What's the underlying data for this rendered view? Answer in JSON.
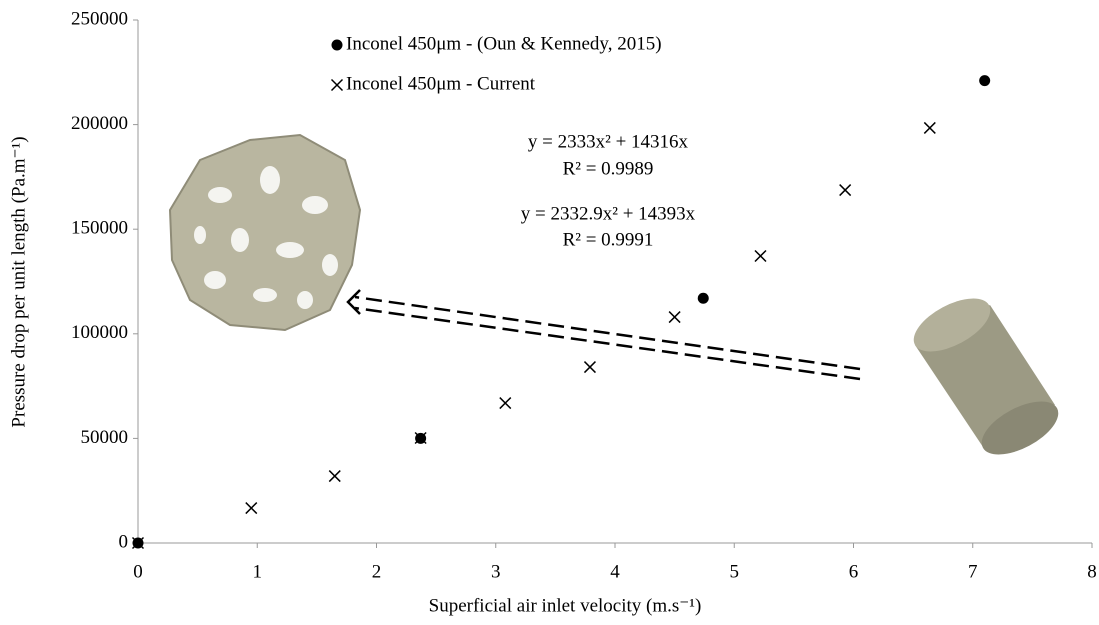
{
  "chart_data": {
    "type": "scatter",
    "x_label": "Superficial air inlet velocity (m.s⁻¹)",
    "y_label": "Pressure drop per unit length (Pa.m⁻¹)",
    "xlim": [
      0,
      8
    ],
    "xticks": [
      0,
      1,
      2,
      3,
      4,
      5,
      6,
      7,
      8
    ],
    "ylim": [
      0,
      250000
    ],
    "yticks": [
      0,
      50000,
      100000,
      150000,
      200000,
      250000
    ],
    "grid": false,
    "series": [
      {
        "name": "Inconel 450μm - (Oun & Kennedy, 2015)",
        "color": "#000000",
        "marker": "circle",
        "x": [
          0,
          2.37,
          4.74,
          7.1
        ],
        "y": [
          0,
          50000,
          117000,
          221000
        ]
      },
      {
        "name": "Inconel 450μm - Current",
        "color": "#000000",
        "marker": "x",
        "x": [
          0,
          0.95,
          1.65,
          2.37,
          3.08,
          3.79,
          4.5,
          5.22,
          5.93,
          6.64
        ],
        "y": [
          0,
          16700,
          32000,
          50200,
          66900,
          84100,
          108000,
          137200,
          168700,
          198400
        ]
      }
    ],
    "annotations": [
      "y = 2333x² + 14316x",
      "R² = 0.9989",
      "y = 2332.9x² + 14393x",
      "R² = 0.9991"
    ]
  }
}
